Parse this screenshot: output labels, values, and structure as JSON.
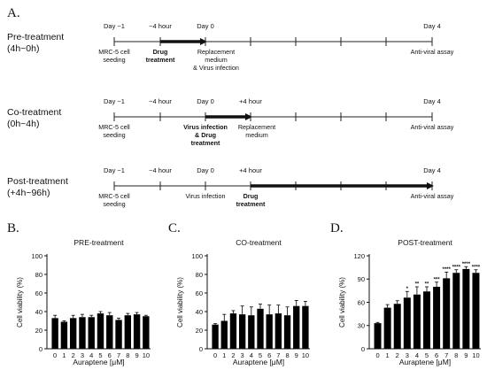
{
  "panel_a": {
    "label": "A.",
    "rows": [
      {
        "title": [
          "Pre-treatment",
          "(4h~0h)"
        ],
        "top_labels": [
          "Day −1",
          "~4 hour",
          "Day 0",
          "",
          "Day 4"
        ],
        "bottom_labels": [
          {
            "lines": [
              "MRC-5 cell",
              "seeding"
            ],
            "bold": false
          },
          {
            "lines": [
              "Drug",
              "treatment"
            ],
            "bold": true
          },
          {
            "lines": [
              "Replacement",
              "medium",
              "& Virus infection"
            ],
            "bold": false
          },
          {
            "lines": [
              "Anti-viral assay"
            ],
            "bold": false
          }
        ],
        "thick_segment": "pre"
      },
      {
        "title": [
          "Co-treatment",
          "(0h~4h)"
        ],
        "top_labels": [
          "Day −1",
          "~4 hour",
          "Day 0",
          "+4 hour",
          "Day 4"
        ],
        "bottom_labels": [
          {
            "lines": [
              "MRC-5 cell",
              "seeding"
            ],
            "bold": false
          },
          {
            "lines": [
              "Virus infection",
              "& Drug",
              "treatment"
            ],
            "bold": true
          },
          {
            "lines": [
              "Replacement",
              "medium"
            ],
            "bold": false
          },
          {
            "lines": [
              "Anti-viral assay"
            ],
            "bold": false
          }
        ],
        "thick_segment": "co"
      },
      {
        "title": [
          "Post-treatment",
          "(+4h~96h)"
        ],
        "top_labels": [
          "Day −1",
          "~4 hour",
          "Day 0",
          "+4 hour",
          "Day 4"
        ],
        "bottom_labels": [
          {
            "lines": [
              "MRC-5 cell",
              "seeding"
            ],
            "bold": false
          },
          {
            "lines": [
              "Virus infection"
            ],
            "bold": false
          },
          {
            "lines": [
              "Drug",
              "treatment"
            ],
            "bold": true
          },
          {
            "lines": [
              "Anti-viral assay"
            ],
            "bold": false
          }
        ],
        "thick_segment": "post"
      }
    ]
  },
  "chart_data": [
    {
      "type": "bar",
      "panel_label": "B.",
      "title": "PRE-treatment",
      "xlabel": "Auraptene [μM]",
      "ylabel": "Cell viability (%)",
      "categories": [
        "0",
        "1",
        "2",
        "3",
        "4",
        "5",
        "6",
        "7",
        "8",
        "9",
        "10"
      ],
      "values": [
        33,
        29,
        33,
        34,
        34,
        38,
        36,
        31,
        36,
        37,
        35
      ],
      "errors": [
        3,
        1,
        3,
        3,
        2,
        2,
        3,
        2,
        2,
        2,
        1
      ],
      "significance": [
        "",
        "",
        "",
        "",
        "",
        "",
        "",
        "",
        "",
        "",
        ""
      ],
      "ylim": [
        0,
        100
      ],
      "yticks": [
        0,
        20,
        40,
        60,
        80,
        100
      ]
    },
    {
      "type": "bar",
      "panel_label": "C.",
      "title": "CO-treatment",
      "xlabel": "Auraptene [μM]",
      "ylabel": "Cell viability (%)",
      "categories": [
        "0",
        "1",
        "2",
        "3",
        "4",
        "5",
        "6",
        "7",
        "8",
        "9",
        "10"
      ],
      "values": [
        26,
        30,
        38,
        37,
        36,
        43,
        37,
        38,
        36,
        46,
        46
      ],
      "errors": [
        1,
        7,
        3,
        9,
        9,
        5,
        10,
        9,
        9,
        6,
        5
      ],
      "significance": [
        "",
        "",
        "",
        "",
        "",
        "",
        "",
        "",
        "",
        "",
        ""
      ],
      "ylim": [
        0,
        100
      ],
      "yticks": [
        0,
        20,
        40,
        60,
        80,
        100
      ]
    },
    {
      "type": "bar",
      "panel_label": "D.",
      "title": "POST-treatment",
      "xlabel": "Auraptene [μM]",
      "ylabel": "Cell viability (%)",
      "categories": [
        "0",
        "1",
        "2",
        "3",
        "4",
        "5",
        "6",
        "7",
        "8",
        "9",
        "10"
      ],
      "values": [
        33,
        53,
        58,
        66,
        70,
        74,
        80,
        91,
        98,
        103,
        98
      ],
      "errors": [
        1,
        4,
        4,
        8,
        10,
        6,
        6,
        8,
        4,
        3,
        4
      ],
      "significance": [
        "",
        "",
        "",
        "*",
        "**",
        "**",
        "***",
        "****",
        "****",
        "****",
        "****"
      ],
      "ylim": [
        0,
        120
      ],
      "yticks": [
        0,
        30,
        60,
        90,
        120
      ]
    }
  ]
}
